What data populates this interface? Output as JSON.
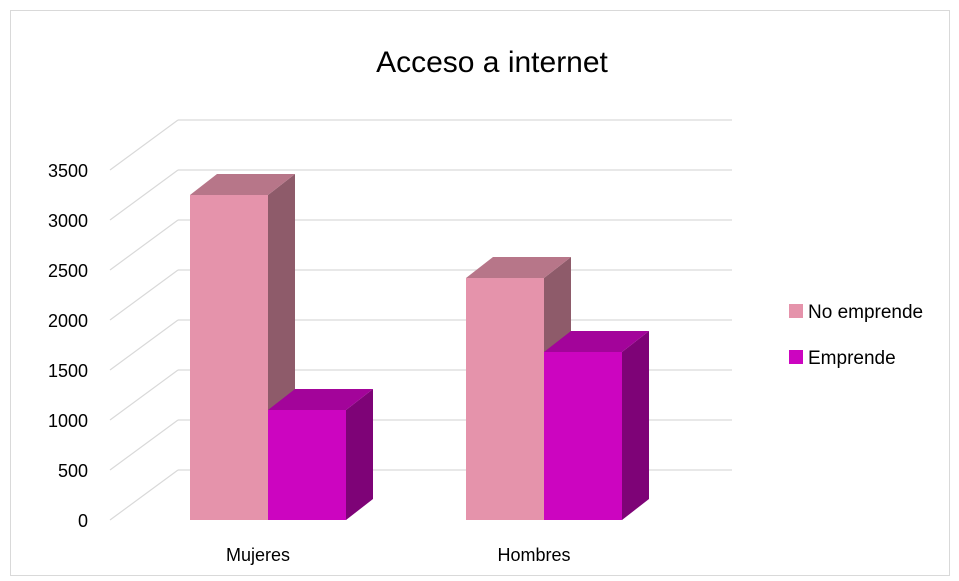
{
  "chart_data": {
    "type": "bar",
    "title": "Acceso a internet",
    "xlabel": "",
    "ylabel": "",
    "categories": [
      "Mujeres",
      "Hombres"
    ],
    "series": [
      {
        "name": "No emprende",
        "values": [
          3250,
          2420
        ],
        "color": "#e593ab"
      },
      {
        "name": "Emprende",
        "values": [
          1100,
          1680
        ],
        "color": "#cc05c0"
      }
    ],
    "yticks": [
      "0",
      "500",
      "1000",
      "1500",
      "2000",
      "2500",
      "3000",
      "3500"
    ],
    "ylim": [
      0,
      3500
    ],
    "grid": true,
    "legend": "right",
    "style": "3d-clustered-column"
  }
}
